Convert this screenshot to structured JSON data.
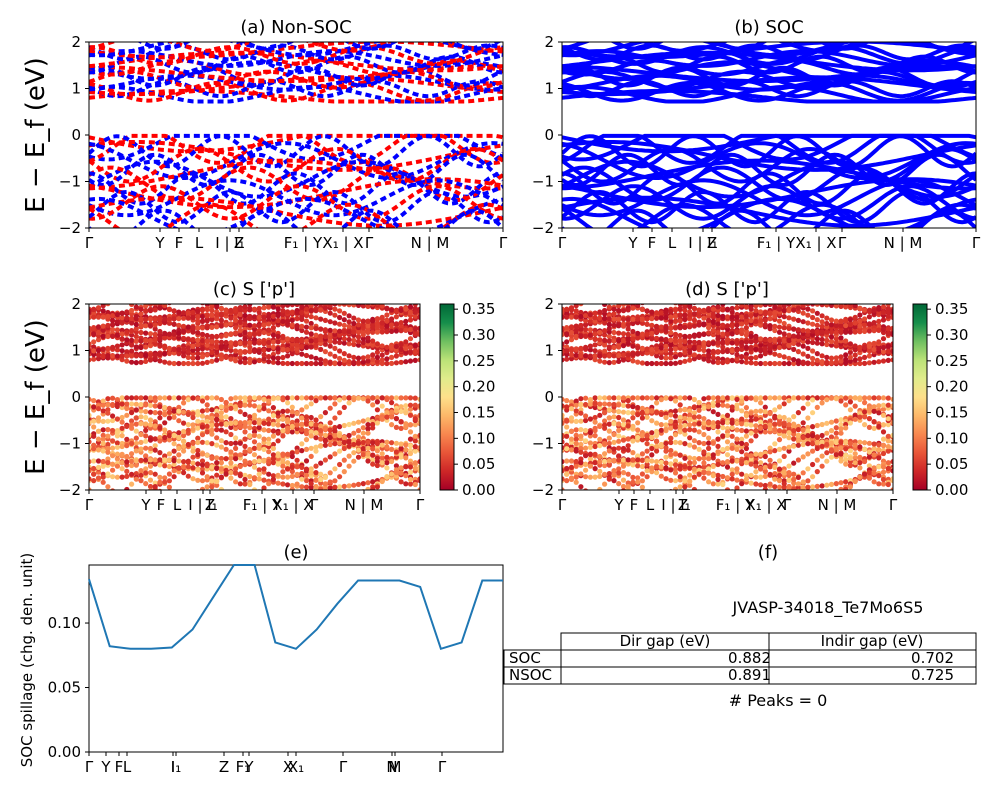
{
  "panels": {
    "a": {
      "title": "(a) Non-SOC"
    },
    "b": {
      "title": "(b) SOC"
    },
    "c": {
      "title": "(c)  S ['p']"
    },
    "d": {
      "title": "(d) S ['p']"
    },
    "e": {
      "title": "(e)"
    },
    "f": {
      "title": "(f)"
    }
  },
  "colors": {
    "non_soc_a": "#ff0000",
    "non_soc_b": "#0000ff",
    "soc": "#0000ff",
    "spillage_line": "#1f77b4"
  },
  "band_axes": {
    "ylabel": "E − E_f (eV)",
    "ylim": [
      -2,
      2
    ],
    "yticks": [
      "2",
      "1",
      "0",
      "−1",
      "−2"
    ],
    "kpath_ab": [
      "Γ",
      "Y",
      "F",
      "L",
      "I | I₁",
      "Z",
      "F₁ | Y",
      "X₁ | X",
      "Γ",
      "N | M",
      "Γ"
    ],
    "kpath_cd": [
      "Γ",
      "Y",
      "F",
      "L",
      "I | I₁",
      "Z",
      "F₁ | Y",
      "X₁ | X",
      "Γ",
      "N | M",
      "Γ"
    ]
  },
  "colorbar": {
    "ticks": [
      "0.35",
      "0.30",
      "0.25",
      "0.20",
      "0.15",
      "0.10",
      "0.05",
      "0.00"
    ],
    "range": [
      0,
      0.36
    ],
    "colormap": "RdYlGn"
  },
  "spillage": {
    "ylabel": "SOC spillage (chg. den. unit)",
    "yticks": [
      "0.10",
      "0.05",
      "0.00"
    ],
    "xticks": [
      "Γ",
      "Y",
      "F",
      "L",
      "I",
      "I₁",
      "Z",
      "F₁",
      "Y",
      "X",
      "X₁",
      "Γ",
      "N",
      "M",
      "Γ"
    ]
  },
  "info": {
    "material": "JVASP-34018_Te7Mo6S5",
    "table": {
      "headers": [
        "",
        "Dir gap (eV)",
        "Indir gap (eV)"
      ],
      "rows": [
        {
          "label": "SOC",
          "dir": "0.882",
          "indir": "0.702"
        },
        {
          "label": "NSOC",
          "dir": "0.891",
          "indir": "0.725"
        }
      ]
    },
    "peaks": "# Peaks = 0"
  },
  "chart_data": [
    {
      "type": "line",
      "title": "(a) Non-SOC",
      "ylabel": "E − E_f (eV)",
      "ylim": [
        -2,
        2
      ],
      "x": [
        "Γ",
        "Y",
        "F",
        "L",
        "I | I₁",
        "Z",
        "F₁ | Y",
        "X₁ | X",
        "Γ",
        "N | M",
        "Γ"
      ],
      "gap": {
        "valence_max": 0.0,
        "conduction_min": 0.8
      }
    },
    {
      "type": "line",
      "title": "(b) SOC",
      "ylim": [
        -2,
        2
      ],
      "x": [
        "Γ",
        "Y",
        "F",
        "L",
        "I | I₁",
        "Z",
        "F₁ | Y",
        "X₁ | X",
        "Γ",
        "N | M",
        "Γ"
      ],
      "gap": {
        "valence_max": 0.0,
        "conduction_min": 0.75
      }
    },
    {
      "type": "scatter",
      "title": "(c)  S ['p']",
      "ylim": [
        -2,
        2
      ],
      "colorbar_range": [
        0,
        0.36
      ]
    },
    {
      "type": "scatter",
      "title": "(d) S ['p']",
      "ylim": [
        -2,
        2
      ],
      "colorbar_range": [
        0,
        0.36
      ]
    },
    {
      "type": "line",
      "title": "(e)",
      "ylabel": "SOC spillage (chg. den. unit)",
      "ylim": [
        0,
        0.145
      ],
      "x": [
        0,
        0.05,
        0.1,
        0.15,
        0.2,
        0.25,
        0.3,
        0.35,
        0.4,
        0.45,
        0.5,
        0.55,
        0.6,
        0.65,
        0.7,
        0.75,
        0.8,
        0.85,
        0.9,
        0.95,
        1.0
      ],
      "values": [
        0.134,
        0.082,
        0.08,
        0.08,
        0.081,
        0.095,
        0.12,
        0.145,
        0.145,
        0.085,
        0.08,
        0.095,
        0.115,
        0.133,
        0.133,
        0.133,
        0.128,
        0.08,
        0.085,
        0.133,
        0.133
      ]
    }
  ]
}
